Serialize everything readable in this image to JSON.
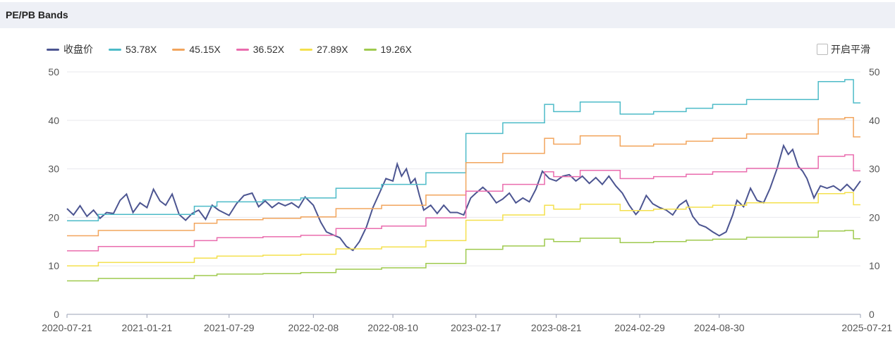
{
  "header": {
    "title": "PE/PB Bands"
  },
  "controls": {
    "smooth_label": "开启平滑",
    "smooth_checked": false
  },
  "chart_data": {
    "type": "line",
    "x_ticks": [
      "2020-07-21",
      "2021-01-21",
      "2021-07-29",
      "2022-02-08",
      "2022-08-10",
      "2023-02-17",
      "2023-08-21",
      "2024-02-29",
      "2024-08-30",
      "2025-07-21"
    ],
    "ylim": [
      0,
      50
    ],
    "y_ticks": [
      0,
      10,
      20,
      30,
      40,
      50
    ],
    "grid": true,
    "legend_position": "top-left",
    "series": [
      {
        "name": "收盘价",
        "color": "#4c5591",
        "points": [
          [
            "2020-07-21",
            21.8
          ],
          [
            "2020-08-05",
            20.5
          ],
          [
            "2020-08-20",
            22.4
          ],
          [
            "2020-09-05",
            20.2
          ],
          [
            "2020-09-20",
            21.5
          ],
          [
            "2020-10-05",
            19.8
          ],
          [
            "2020-10-20",
            21.0
          ],
          [
            "2020-11-05",
            20.8
          ],
          [
            "2020-11-20",
            23.5
          ],
          [
            "2020-12-05",
            24.8
          ],
          [
            "2020-12-20",
            21.0
          ],
          [
            "2021-01-05",
            23.0
          ],
          [
            "2021-01-21",
            22.0
          ],
          [
            "2021-02-05",
            25.8
          ],
          [
            "2021-02-20",
            23.4
          ],
          [
            "2021-03-05",
            22.5
          ],
          [
            "2021-03-20",
            24.8
          ],
          [
            "2021-04-05",
            20.6
          ],
          [
            "2021-04-20",
            19.4
          ],
          [
            "2021-05-05",
            20.8
          ],
          [
            "2021-05-20",
            21.5
          ],
          [
            "2021-06-05",
            19.6
          ],
          [
            "2021-06-20",
            22.5
          ],
          [
            "2021-07-05",
            21.5
          ],
          [
            "2021-07-29",
            20.4
          ],
          [
            "2021-08-15",
            22.8
          ],
          [
            "2021-09-01",
            24.5
          ],
          [
            "2021-09-20",
            25.0
          ],
          [
            "2021-10-05",
            22.2
          ],
          [
            "2021-10-20",
            23.4
          ],
          [
            "2021-11-05",
            22.0
          ],
          [
            "2021-11-20",
            23.0
          ],
          [
            "2021-12-05",
            22.4
          ],
          [
            "2021-12-20",
            23.0
          ],
          [
            "2022-01-05",
            22.0
          ],
          [
            "2022-01-20",
            24.2
          ],
          [
            "2022-02-08",
            22.5
          ],
          [
            "2022-02-25",
            19.0
          ],
          [
            "2022-03-10",
            17.0
          ],
          [
            "2022-03-25",
            16.4
          ],
          [
            "2022-04-10",
            15.8
          ],
          [
            "2022-04-25",
            14.0
          ],
          [
            "2022-05-10",
            13.2
          ],
          [
            "2022-05-25",
            15.0
          ],
          [
            "2022-06-10",
            18.0
          ],
          [
            "2022-06-25",
            22.0
          ],
          [
            "2022-07-10",
            25.0
          ],
          [
            "2022-07-25",
            28.0
          ],
          [
            "2022-08-10",
            27.5
          ],
          [
            "2022-08-20",
            31.0
          ],
          [
            "2022-08-30",
            28.5
          ],
          [
            "2022-09-10",
            30.0
          ],
          [
            "2022-09-20",
            27.0
          ],
          [
            "2022-09-30",
            28.0
          ],
          [
            "2022-10-10",
            24.5
          ],
          [
            "2022-10-20",
            21.5
          ],
          [
            "2022-11-05",
            22.5
          ],
          [
            "2022-11-20",
            20.8
          ],
          [
            "2022-12-05",
            22.5
          ],
          [
            "2022-12-20",
            21.0
          ],
          [
            "2023-01-05",
            21.0
          ],
          [
            "2023-01-20",
            20.5
          ],
          [
            "2023-02-05",
            24.0
          ],
          [
            "2023-02-17",
            25.0
          ],
          [
            "2023-03-05",
            26.2
          ],
          [
            "2023-03-20",
            25.0
          ],
          [
            "2023-04-05",
            23.0
          ],
          [
            "2023-04-20",
            23.8
          ],
          [
            "2023-05-05",
            25.0
          ],
          [
            "2023-05-20",
            23.0
          ],
          [
            "2023-06-05",
            24.0
          ],
          [
            "2023-06-20",
            23.2
          ],
          [
            "2023-07-05",
            25.8
          ],
          [
            "2023-07-20",
            29.5
          ],
          [
            "2023-08-05",
            28.0
          ],
          [
            "2023-08-21",
            27.5
          ],
          [
            "2023-09-05",
            28.5
          ],
          [
            "2023-09-20",
            28.8
          ],
          [
            "2023-10-05",
            27.5
          ],
          [
            "2023-10-20",
            28.5
          ],
          [
            "2023-11-05",
            27.0
          ],
          [
            "2023-11-20",
            28.2
          ],
          [
            "2023-12-05",
            26.8
          ],
          [
            "2023-12-20",
            28.5
          ],
          [
            "2024-01-05",
            26.5
          ],
          [
            "2024-01-20",
            25.0
          ],
          [
            "2024-02-05",
            22.5
          ],
          [
            "2024-02-20",
            20.6
          ],
          [
            "2024-02-29",
            21.5
          ],
          [
            "2024-03-15",
            24.5
          ],
          [
            "2024-03-30",
            22.8
          ],
          [
            "2024-04-15",
            22.0
          ],
          [
            "2024-04-30",
            21.5
          ],
          [
            "2024-05-15",
            20.5
          ],
          [
            "2024-05-30",
            22.5
          ],
          [
            "2024-06-15",
            23.5
          ],
          [
            "2024-06-30",
            20.2
          ],
          [
            "2024-07-15",
            18.5
          ],
          [
            "2024-07-30",
            18.0
          ],
          [
            "2024-08-15",
            17.0
          ],
          [
            "2024-08-30",
            16.2
          ],
          [
            "2024-09-15",
            17.0
          ],
          [
            "2024-09-30",
            20.5
          ],
          [
            "2024-10-10",
            23.5
          ],
          [
            "2024-10-25",
            22.2
          ],
          [
            "2024-11-10",
            26.0
          ],
          [
            "2024-11-25",
            23.5
          ],
          [
            "2024-12-10",
            23.0
          ],
          [
            "2024-12-25",
            26.0
          ],
          [
            "2025-01-10",
            30.0
          ],
          [
            "2025-01-25",
            34.8
          ],
          [
            "2025-02-05",
            33.0
          ],
          [
            "2025-02-15",
            34.0
          ],
          [
            "2025-02-28",
            30.5
          ],
          [
            "2025-03-10",
            29.5
          ],
          [
            "2025-03-20",
            28.0
          ],
          [
            "2025-04-05",
            24.0
          ],
          [
            "2025-04-20",
            26.5
          ],
          [
            "2025-05-05",
            26.0
          ],
          [
            "2025-05-20",
            26.5
          ],
          [
            "2025-06-05",
            25.5
          ],
          [
            "2025-06-20",
            26.8
          ],
          [
            "2025-07-05",
            25.5
          ],
          [
            "2025-07-21",
            27.5
          ]
        ]
      },
      {
        "name": "53.78X",
        "color": "#4dbbc8",
        "steps": [
          [
            "2020-07-21",
            19.3
          ],
          [
            "2020-10-01",
            20.6
          ],
          [
            "2021-05-10",
            22.3
          ],
          [
            "2021-07-01",
            23.2
          ],
          [
            "2021-10-15",
            23.6
          ],
          [
            "2022-01-10",
            24.0
          ],
          [
            "2022-04-01",
            26.0
          ],
          [
            "2022-07-15",
            26.8
          ],
          [
            "2022-10-25",
            29.2
          ],
          [
            "2023-01-25",
            37.3
          ],
          [
            "2023-04-20",
            39.5
          ],
          [
            "2023-07-25",
            43.3
          ],
          [
            "2023-08-15",
            41.8
          ],
          [
            "2023-10-15",
            43.8
          ],
          [
            "2024-01-15",
            41.3
          ],
          [
            "2024-04-01",
            41.8
          ],
          [
            "2024-06-15",
            42.5
          ],
          [
            "2024-08-15",
            43.3
          ],
          [
            "2024-11-01",
            44.3
          ],
          [
            "2025-04-15",
            48.0
          ],
          [
            "2025-06-15",
            48.4
          ],
          [
            "2025-07-05",
            43.6
          ]
        ]
      },
      {
        "name": "45.15X",
        "color": "#f2a55d",
        "steps": [
          [
            "2020-07-21",
            16.2
          ],
          [
            "2020-10-01",
            17.3
          ],
          [
            "2021-05-10",
            18.8
          ],
          [
            "2021-07-01",
            19.5
          ],
          [
            "2021-10-15",
            19.8
          ],
          [
            "2022-01-10",
            20.1
          ],
          [
            "2022-04-01",
            21.8
          ],
          [
            "2022-07-15",
            22.5
          ],
          [
            "2022-10-25",
            24.6
          ],
          [
            "2023-01-25",
            31.3
          ],
          [
            "2023-04-20",
            33.2
          ],
          [
            "2023-07-25",
            36.3
          ],
          [
            "2023-08-15",
            35.1
          ],
          [
            "2023-10-15",
            36.8
          ],
          [
            "2024-01-15",
            34.7
          ],
          [
            "2024-04-01",
            35.1
          ],
          [
            "2024-06-15",
            35.7
          ],
          [
            "2024-08-15",
            36.3
          ],
          [
            "2024-11-01",
            37.2
          ],
          [
            "2025-04-15",
            40.3
          ],
          [
            "2025-06-15",
            40.6
          ],
          [
            "2025-07-05",
            36.6
          ]
        ]
      },
      {
        "name": "36.52X",
        "color": "#ea6cae",
        "steps": [
          [
            "2020-07-21",
            13.1
          ],
          [
            "2020-10-01",
            14.0
          ],
          [
            "2021-05-10",
            15.2
          ],
          [
            "2021-07-01",
            15.8
          ],
          [
            "2021-10-15",
            16.0
          ],
          [
            "2022-01-10",
            16.3
          ],
          [
            "2022-04-01",
            17.7
          ],
          [
            "2022-07-15",
            18.2
          ],
          [
            "2022-10-25",
            19.9
          ],
          [
            "2023-01-25",
            25.4
          ],
          [
            "2023-04-20",
            26.8
          ],
          [
            "2023-07-25",
            29.4
          ],
          [
            "2023-08-15",
            28.4
          ],
          [
            "2023-10-15",
            29.7
          ],
          [
            "2024-01-15",
            28.0
          ],
          [
            "2024-04-01",
            28.4
          ],
          [
            "2024-06-15",
            28.9
          ],
          [
            "2024-08-15",
            29.4
          ],
          [
            "2024-11-01",
            30.1
          ],
          [
            "2025-04-15",
            32.6
          ],
          [
            "2025-06-15",
            32.9
          ],
          [
            "2025-07-05",
            29.6
          ]
        ]
      },
      {
        "name": "27.89X",
        "color": "#f4e04d",
        "steps": [
          [
            "2020-07-21",
            10.0
          ],
          [
            "2020-10-01",
            10.7
          ],
          [
            "2021-05-10",
            11.6
          ],
          [
            "2021-07-01",
            12.0
          ],
          [
            "2021-10-15",
            12.2
          ],
          [
            "2022-01-10",
            12.4
          ],
          [
            "2022-04-01",
            13.5
          ],
          [
            "2022-07-15",
            13.9
          ],
          [
            "2022-10-25",
            15.2
          ],
          [
            "2023-01-25",
            19.4
          ],
          [
            "2023-04-20",
            20.5
          ],
          [
            "2023-07-25",
            22.5
          ],
          [
            "2023-08-15",
            21.7
          ],
          [
            "2023-10-15",
            22.7
          ],
          [
            "2024-01-15",
            21.4
          ],
          [
            "2024-04-01",
            21.7
          ],
          [
            "2024-06-15",
            22.1
          ],
          [
            "2024-08-15",
            22.5
          ],
          [
            "2024-11-01",
            23.0
          ],
          [
            "2025-04-15",
            24.9
          ],
          [
            "2025-06-15",
            25.1
          ],
          [
            "2025-07-05",
            22.6
          ]
        ]
      },
      {
        "name": "19.26X",
        "color": "#9fca4f",
        "steps": [
          [
            "2020-07-21",
            6.9
          ],
          [
            "2020-10-01",
            7.4
          ],
          [
            "2021-05-10",
            8.0
          ],
          [
            "2021-07-01",
            8.3
          ],
          [
            "2021-10-15",
            8.4
          ],
          [
            "2022-01-10",
            8.6
          ],
          [
            "2022-04-01",
            9.3
          ],
          [
            "2022-07-15",
            9.6
          ],
          [
            "2022-10-25",
            10.5
          ],
          [
            "2023-01-25",
            13.4
          ],
          [
            "2023-04-20",
            14.1
          ],
          [
            "2023-07-25",
            15.5
          ],
          [
            "2023-08-15",
            15.0
          ],
          [
            "2023-10-15",
            15.7
          ],
          [
            "2024-01-15",
            14.8
          ],
          [
            "2024-04-01",
            15.0
          ],
          [
            "2024-06-15",
            15.3
          ],
          [
            "2024-08-15",
            15.5
          ],
          [
            "2024-11-01",
            15.9
          ],
          [
            "2025-04-15",
            17.2
          ],
          [
            "2025-06-15",
            17.3
          ],
          [
            "2025-07-05",
            15.6
          ]
        ]
      }
    ]
  }
}
